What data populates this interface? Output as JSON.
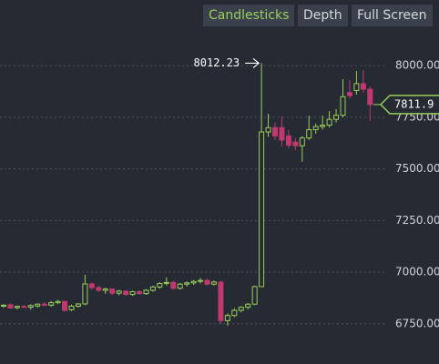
{
  "toolbar": {
    "buttons": [
      "Candlesticks",
      "Depth",
      "Full Screen"
    ],
    "active": 0
  },
  "chart_data": {
    "type": "candlestick",
    "open": [
      6835,
      6842,
      6828,
      6834,
      6830,
      6836,
      6845,
      6840,
      6852,
      6858,
      6818,
      6835,
      6846,
      6943,
      6925,
      6912,
      6918,
      6898,
      6908,
      6892,
      6905,
      6896,
      6912,
      6928,
      6945,
      6950,
      6922,
      6942,
      6948,
      6955,
      6960,
      6942,
      6952,
      6765,
      6790,
      6815,
      6830,
      6845,
      6930,
      7679,
      7700,
      7700,
      7660,
      7630,
      7612,
      7650,
      7690,
      7705,
      7712,
      7740,
      7760,
      7870,
      7880,
      7913,
      7886
    ],
    "high": [
      6845,
      6848,
      6838,
      6840,
      6845,
      6848,
      6855,
      6860,
      6866,
      6862,
      6842,
      6850,
      6987,
      6950,
      6935,
      6925,
      6922,
      6915,
      6912,
      6910,
      6912,
      6918,
      6935,
      6952,
      6975,
      6958,
      6948,
      6955,
      6962,
      6972,
      6968,
      6960,
      6958,
      6800,
      6825,
      6835,
      6850,
      6935,
      8012.23,
      7767,
      7725,
      7754,
      7690,
      7650,
      7660,
      7758,
      7720,
      7758,
      7780,
      7790,
      7935,
      7930,
      7974,
      7979,
      7900
    ],
    "low": [
      6828,
      6822,
      6820,
      6826,
      6818,
      6828,
      6835,
      6832,
      6845,
      6808,
      6812,
      6828,
      6840,
      6915,
      6905,
      6895,
      6890,
      6888,
      6885,
      6885,
      6890,
      6890,
      6905,
      6920,
      6935,
      6915,
      6915,
      6930,
      6938,
      6945,
      6935,
      6935,
      6750,
      6740,
      6782,
      6805,
      6820,
      6840,
      6928,
      7655,
      7640,
      7610,
      7600,
      7590,
      7534,
      7640,
      7670,
      7690,
      7700,
      7725,
      7750,
      7840,
      7860,
      7870,
      7732
    ],
    "close": [
      6840,
      6826,
      6834,
      6830,
      6838,
      6845,
      6840,
      6852,
      6858,
      6815,
      6835,
      6846,
      6943,
      6925,
      6912,
      6918,
      6898,
      6908,
      6892,
      6905,
      6896,
      6912,
      6928,
      6945,
      6950,
      6922,
      6942,
      6948,
      6955,
      6960,
      6942,
      6952,
      6765,
      6790,
      6815,
      6830,
      6845,
      6930,
      7679,
      7700,
      7660,
      7640,
      7615,
      7612,
      7650,
      7690,
      7705,
      7712,
      7740,
      7760,
      7850,
      7855,
      7913,
      7886,
      7811.9
    ],
    "up_color": "#9acd5a",
    "down_color": "#c0396f",
    "ylim": [
      6555,
      8164
    ],
    "yticks": [
      {
        "value": 6750,
        "label": "6750.00"
      },
      {
        "value": 7000,
        "label": "7000.00"
      },
      {
        "value": 7250,
        "label": "7250.00"
      },
      {
        "value": 7500,
        "label": "7500.00"
      },
      {
        "value": 7750,
        "label": "7750.00"
      },
      {
        "value": 8000,
        "label": "8000.00"
      }
    ],
    "grid": true
  }
}
